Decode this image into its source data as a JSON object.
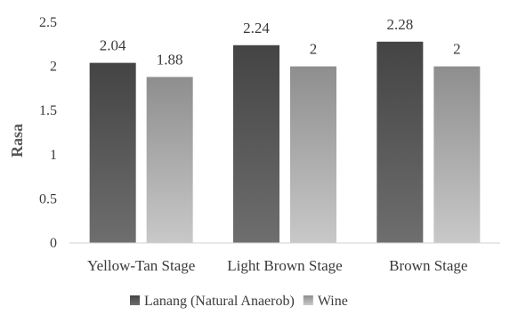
{
  "chart_data": {
    "type": "bar",
    "title": "",
    "xlabel": "",
    "ylabel": "Rasa",
    "ylim": [
      0,
      2.5
    ],
    "yticks": [
      0,
      0.5,
      1,
      1.5,
      2,
      2.5
    ],
    "ytick_labels": [
      "0",
      "0.5",
      "1",
      "1.5",
      "2",
      "2.5"
    ],
    "grid": false,
    "legend_position": "bottom",
    "categories": [
      "Yellow-Tan Stage",
      "Light Brown Stage",
      "Brown Stage"
    ],
    "series": [
      {
        "name": "Lanang (Natural Anaerob)",
        "values": [
          2.04,
          2.24,
          2.28
        ],
        "labels": [
          "2.04",
          "2.24",
          "2.28"
        ],
        "color": "#555555"
      },
      {
        "name": "Wine",
        "values": [
          1.88,
          2,
          2
        ],
        "labels": [
          "1.88",
          "2",
          "2"
        ],
        "color": "#a6a6a6"
      }
    ]
  }
}
